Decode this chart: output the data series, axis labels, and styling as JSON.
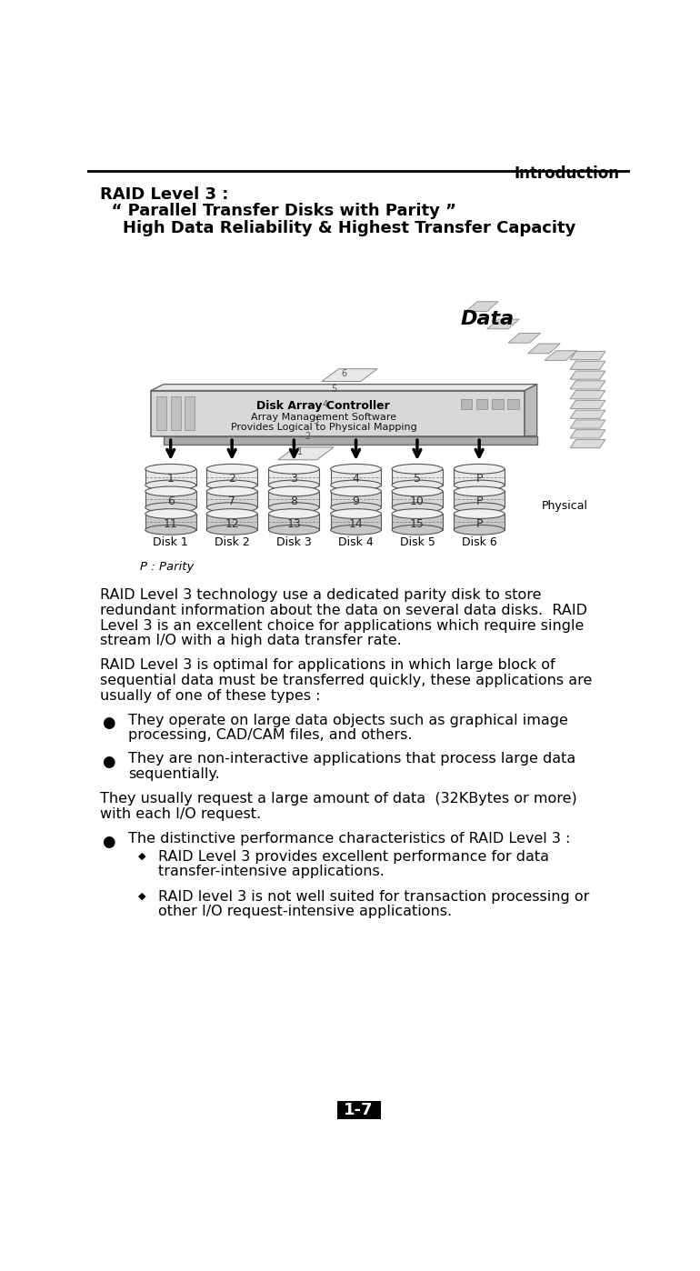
{
  "header_text": "Introduction",
  "page_number": "1-7",
  "title_line1": "RAID Level 3 :",
  "title_line2": "  “ Parallel Transfer Disks with Parity ”",
  "title_line3": "    High Data Reliability & Highest Transfer Capacity",
  "para1_lines": [
    "RAID Level 3 technology use a dedicated parity disk to store",
    "redundant information about the data on several data disks.  RAID",
    "Level 3 is an excellent choice for applications which require single",
    "stream I/O with a high data transfer rate."
  ],
  "para2_lines": [
    "RAID Level 3 is optimal for applications in which large block of",
    "sequential data must be transferred quickly, these applications are",
    "usually of one of these types :"
  ],
  "bullet1_lines": [
    "They operate on large data objects such as graphical image",
    "processing, CAD/CAM files, and others."
  ],
  "bullet2_lines": [
    "They are non-interactive applications that process large data",
    "sequentially."
  ],
  "para3_lines": [
    "They usually request a large amount of data  (32KBytes or more)",
    "with each I/O request."
  ],
  "bullet3_main": "The distinctive performance characteristics of RAID Level 3 :",
  "sub_bullet1_lines": [
    "RAID Level 3 provides excellent performance for data",
    "transfer-intensive applications."
  ],
  "sub_bullet2_lines": [
    "RAID level 3 is not well suited for transaction processing or",
    "other I/O request-intensive applications."
  ],
  "parity_label": "P : Parity",
  "disk_labels": [
    "Disk 1",
    "Disk 2",
    "Disk 3",
    "Disk 4",
    "Disk 5",
    "Disk 6"
  ],
  "disk_numbers": [
    [
      "1",
      "6",
      "11"
    ],
    [
      "2",
      "7",
      "12"
    ],
    [
      "3",
      "8",
      "13"
    ],
    [
      "4",
      "9",
      "14"
    ],
    [
      "5",
      "10",
      "15"
    ],
    [
      "P",
      "P",
      "P"
    ]
  ],
  "controller_label1": "Disk Array Controller",
  "controller_label2": "Array Management Software",
  "controller_label3": "Provides Logical to Physical Mapping",
  "data_label": "Data",
  "physical_label": "Physical",
  "background_color": "#ffffff",
  "text_color": "#000000"
}
